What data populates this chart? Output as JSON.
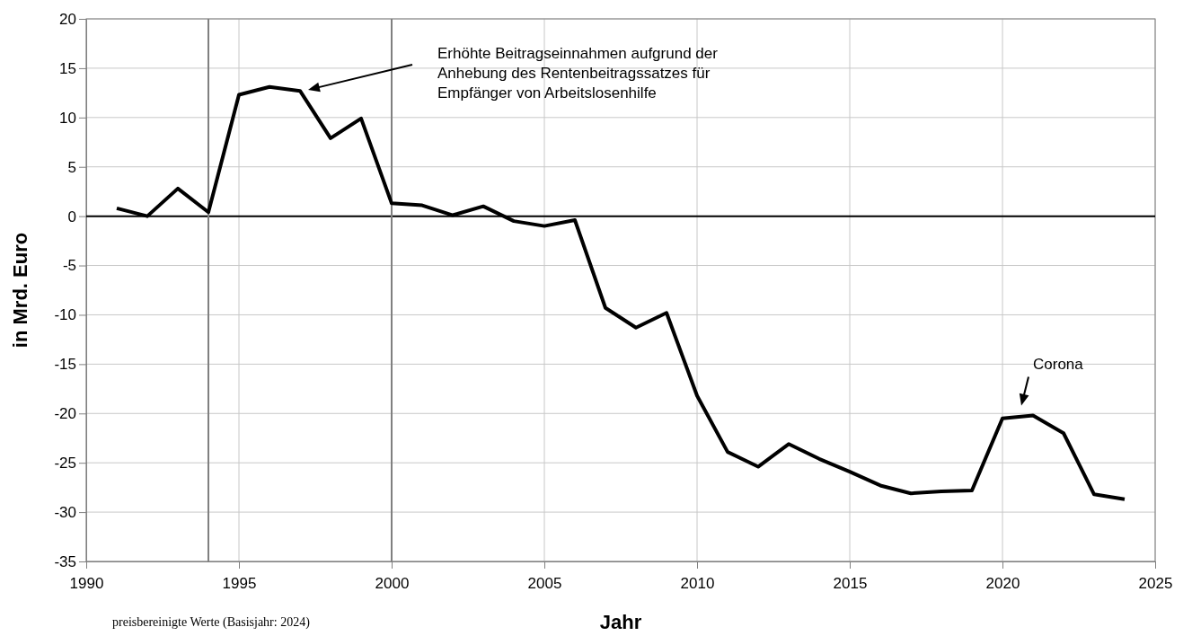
{
  "chart_data": {
    "type": "line",
    "xlabel": "Jahr",
    "ylabel": "in Mrd. Euro",
    "x": [
      1991,
      1992,
      1993,
      1994,
      1995,
      1996,
      1997,
      1998,
      1999,
      2000,
      2001,
      2002,
      2003,
      2004,
      2005,
      2006,
      2007,
      2008,
      2009,
      2010,
      2011,
      2012,
      2013,
      2014,
      2015,
      2016,
      2017,
      2018,
      2019,
      2020,
      2021,
      2022,
      2023,
      2024
    ],
    "series": [
      {
        "color": "#000000",
        "values": [
          0.8,
          0.0,
          2.8,
          0.4,
          12.3,
          13.1,
          12.7,
          7.9,
          9.9,
          1.3,
          1.1,
          0.1,
          1.0,
          -0.5,
          -1.0,
          -0.4,
          -9.3,
          -11.3,
          -9.8,
          -18.2,
          -23.9,
          -25.4,
          -23.1,
          -24.6,
          -25.9,
          -27.3,
          -28.1,
          -27.9,
          -27.8,
          -20.5,
          -20.2,
          -22.0,
          -28.2,
          -28.7
        ]
      }
    ],
    "xlim": [
      1990,
      2025
    ],
    "xticks": [
      1990,
      1995,
      2000,
      2005,
      2010,
      2015,
      2020,
      2025
    ],
    "ylim": [
      -35,
      20
    ],
    "yticks": [
      -35,
      -30,
      -25,
      -20,
      -15,
      -10,
      -5,
      0,
      5,
      10,
      15,
      20
    ],
    "grid": true,
    "marker": "none",
    "line_style": "solid",
    "ref_lines": [
      {
        "axis": "y",
        "value": 0,
        "color": "#000000"
      },
      {
        "axis": "x",
        "value": 1994,
        "color": "#808080"
      },
      {
        "axis": "x",
        "value": 2000,
        "color": "#808080"
      }
    ],
    "annotations": [
      "Erhöhte Beitragseinnahmen aufgrund der Anhebung des Rentenbeitragssatzes für Empfänger von Arbeitslosenhilfe",
      {
        "text": "Corona",
        "x": 2021,
        "y": -20.2
      },
      "preisbereinigte Werte (Basisjahr: 2024)"
    ]
  }
}
